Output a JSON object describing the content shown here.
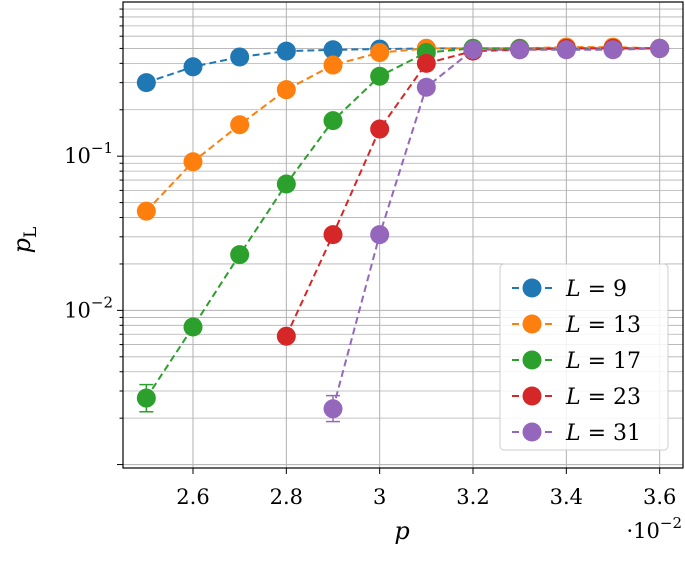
{
  "chart_data": {
    "type": "line",
    "xlabel": "p",
    "ylabel": "p_L",
    "x_multiplier": "·10^-2",
    "x_ticks": [
      "2.6",
      "2.8",
      "3",
      "3.2",
      "3.4",
      "3.6"
    ],
    "y_ticks": [
      "10^-1",
      "10^-2"
    ],
    "yscale": "log",
    "xlim": [
      2.45,
      3.65
    ],
    "ylim": [
      0.00095,
      1.0
    ],
    "grid": true,
    "legend_position": "bottom-right",
    "series": [
      {
        "name": "L = 9",
        "label_var": "L",
        "label_value": "9",
        "color": "#1f77b4",
        "x": [
          2.5,
          2.6,
          2.7,
          2.8,
          2.9,
          3.0,
          3.1,
          3.2,
          3.3,
          3.4,
          3.5,
          3.6
        ],
        "y": [
          0.3,
          0.38,
          0.44,
          0.48,
          0.49,
          0.495,
          0.5,
          0.5,
          0.5,
          0.5,
          0.5,
          0.5
        ]
      },
      {
        "name": "L = 13",
        "label_var": "L",
        "label_value": "13",
        "color": "#ff7f0e",
        "x": [
          2.5,
          2.6,
          2.7,
          2.8,
          2.9,
          3.0,
          3.1,
          3.2,
          3.3,
          3.4,
          3.5,
          3.6
        ],
        "y": [
          0.044,
          0.092,
          0.16,
          0.27,
          0.39,
          0.47,
          0.5,
          0.5,
          0.5,
          0.51,
          0.51,
          0.5
        ]
      },
      {
        "name": "L = 17",
        "label_var": "L",
        "label_value": "17",
        "color": "#2ca02c",
        "x": [
          2.5,
          2.6,
          2.7,
          2.8,
          2.9,
          3.0,
          3.1,
          3.2,
          3.3,
          3.4,
          3.5,
          3.6
        ],
        "y": [
          0.0027,
          0.0078,
          0.023,
          0.066,
          0.17,
          0.33,
          0.47,
          0.5,
          0.5,
          0.5,
          0.5,
          0.5
        ]
      },
      {
        "name": "L = 23",
        "label_var": "L",
        "label_value": "23",
        "color": "#d62728",
        "x": [
          2.8,
          2.9,
          3.0,
          3.1,
          3.2,
          3.3,
          3.4,
          3.5,
          3.6
        ],
        "y": [
          0.0068,
          0.031,
          0.15,
          0.4,
          0.48,
          0.49,
          0.5,
          0.5,
          0.5
        ]
      },
      {
        "name": "L = 31",
        "label_var": "L",
        "label_value": "31",
        "color": "#9467bd",
        "x": [
          2.9,
          3.0,
          3.1,
          3.2,
          3.3,
          3.4,
          3.5,
          3.6
        ],
        "y": [
          0.0023,
          0.031,
          0.28,
          0.49,
          0.49,
          0.49,
          0.49,
          0.5
        ]
      }
    ],
    "error_bars": [
      {
        "series": "L = 17",
        "x": 2.5,
        "low": 0.0022,
        "high": 0.0033
      },
      {
        "series": "L = 31",
        "x": 2.9,
        "low": 0.0019,
        "high": 0.0028
      }
    ]
  }
}
